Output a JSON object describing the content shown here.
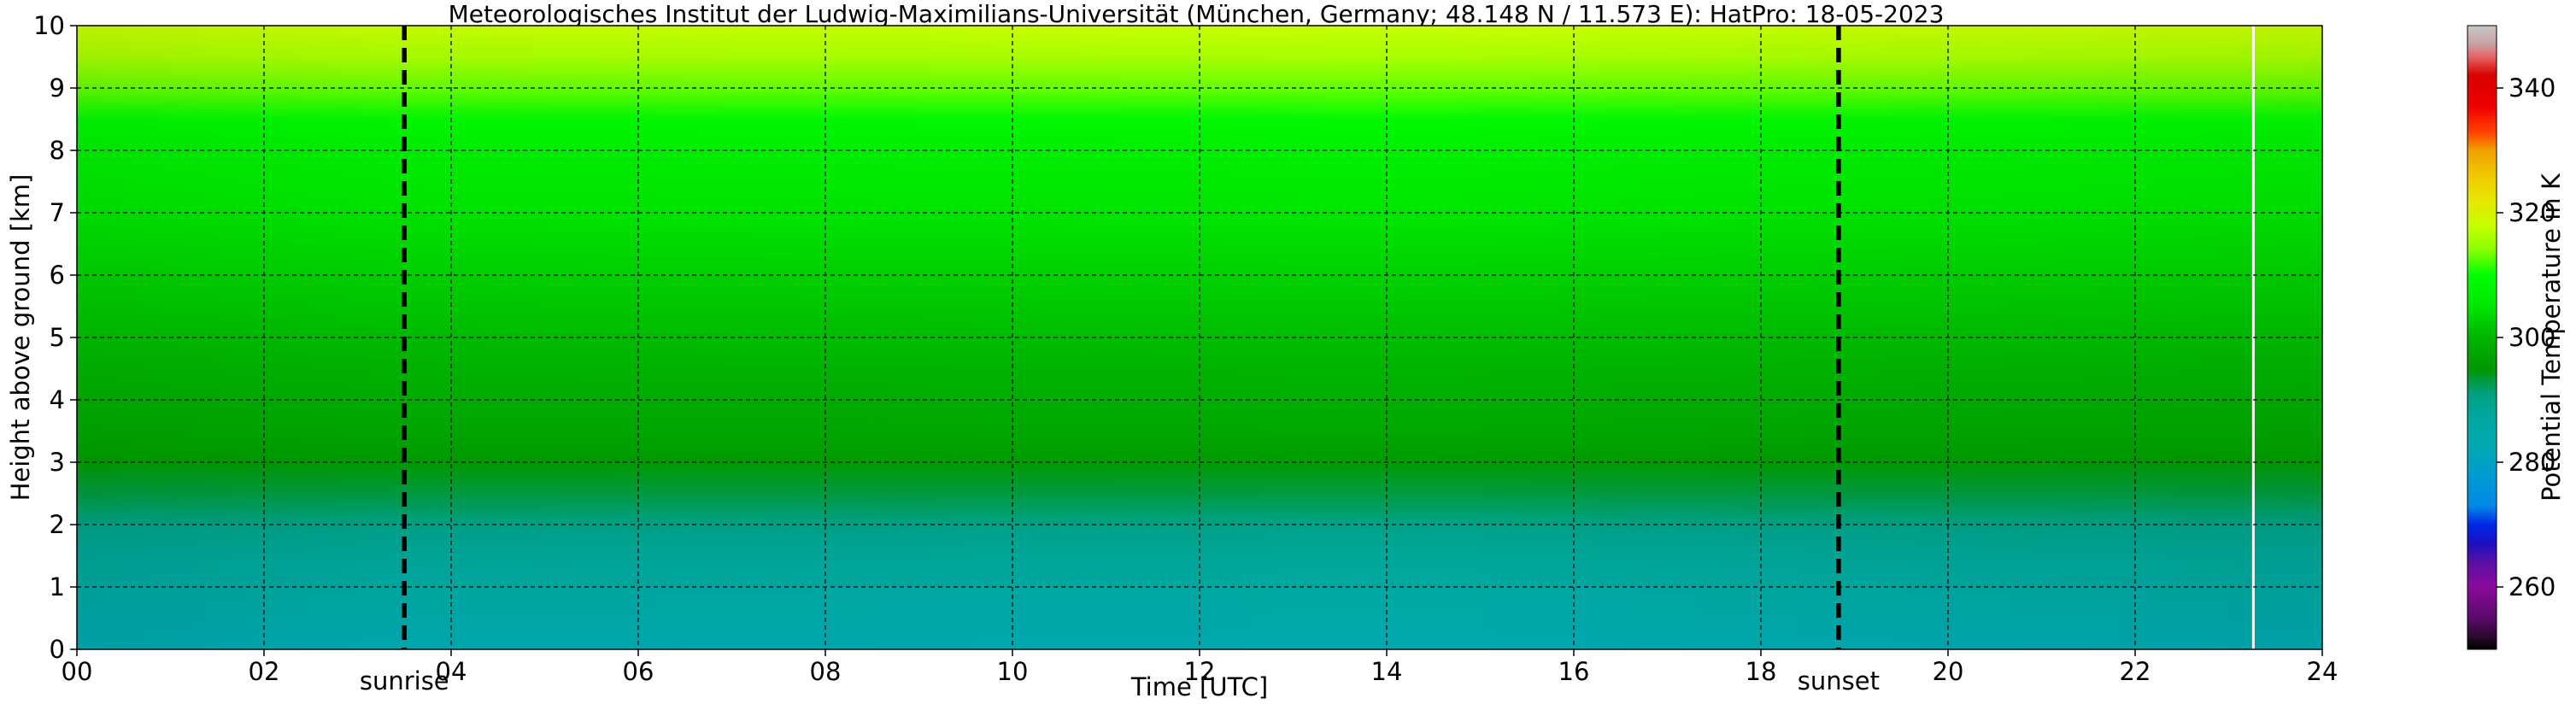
{
  "chart_data": {
    "type": "heatmap",
    "title": "Meteorologisches Institut der Ludwig-Maximilians-Universität (München, Germany; 48.148 N / 11.573 E):    HatPro: 18-05-2023",
    "xlabel": "Time [UTC]",
    "ylabel": "Height above ground [km]",
    "colorbar_label": "Potential Temperature in K",
    "xlim": [
      0,
      24
    ],
    "ylim": [
      0,
      10
    ],
    "x_ticks": [
      "00",
      "02",
      "04",
      "06",
      "08",
      "10",
      "12",
      "14",
      "16",
      "18",
      "20",
      "22",
      "24"
    ],
    "y_ticks": [
      "0",
      "1",
      "2",
      "3",
      "4",
      "5",
      "6",
      "7",
      "8",
      "9",
      "10"
    ],
    "colorbar_ticks": [
      "260",
      "280",
      "300",
      "320",
      "340"
    ],
    "colorbar_range": [
      250,
      350
    ],
    "grid": true,
    "data_end_hour": 23.25,
    "events": [
      {
        "label": "sunrise",
        "hour": 3.5
      },
      {
        "label": "sunset",
        "hour": 18.83
      }
    ],
    "profile": {
      "height_km": [
        0.0,
        0.5,
        1.0,
        1.5,
        2.0,
        2.5,
        3.0,
        3.5,
        4.0,
        4.5,
        5.0,
        6.0,
        7.0,
        8.0,
        8.5,
        9.0,
        9.5,
        10.0
      ],
      "theta_K": [
        283,
        285,
        287,
        288,
        290,
        293,
        296,
        298,
        299,
        300,
        301,
        303,
        305,
        307,
        309,
        313,
        316,
        318
      ]
    },
    "colormap": [
      {
        "t": 250,
        "color": "#000000"
      },
      {
        "t": 252,
        "color": "#2b0a2e"
      },
      {
        "t": 255,
        "color": "#5a0a6a"
      },
      {
        "t": 260,
        "color": "#8a0a9a"
      },
      {
        "t": 264,
        "color": "#5a0fa6"
      },
      {
        "t": 267,
        "color": "#1a10c0"
      },
      {
        "t": 270,
        "color": "#0028e6"
      },
      {
        "t": 273,
        "color": "#0088e6"
      },
      {
        "t": 277,
        "color": "#0098d6"
      },
      {
        "t": 282,
        "color": "#00a8b4"
      },
      {
        "t": 287,
        "color": "#00a8a0"
      },
      {
        "t": 291,
        "color": "#00a080"
      },
      {
        "t": 295,
        "color": "#009600"
      },
      {
        "t": 300,
        "color": "#00b400"
      },
      {
        "t": 305,
        "color": "#00e600"
      },
      {
        "t": 310,
        "color": "#00ff00"
      },
      {
        "t": 314,
        "color": "#88ff00"
      },
      {
        "t": 318,
        "color": "#c8ff00"
      },
      {
        "t": 322,
        "color": "#e6e600"
      },
      {
        "t": 326,
        "color": "#f0c800"
      },
      {
        "t": 330,
        "color": "#f0a000"
      },
      {
        "t": 333,
        "color": "#ff4000"
      },
      {
        "t": 337,
        "color": "#f00000"
      },
      {
        "t": 342,
        "color": "#d80000"
      },
      {
        "t": 345,
        "color": "#e66464"
      },
      {
        "t": 347,
        "color": "#c8a0a0"
      },
      {
        "t": 350,
        "color": "#c8c8c8"
      }
    ]
  }
}
